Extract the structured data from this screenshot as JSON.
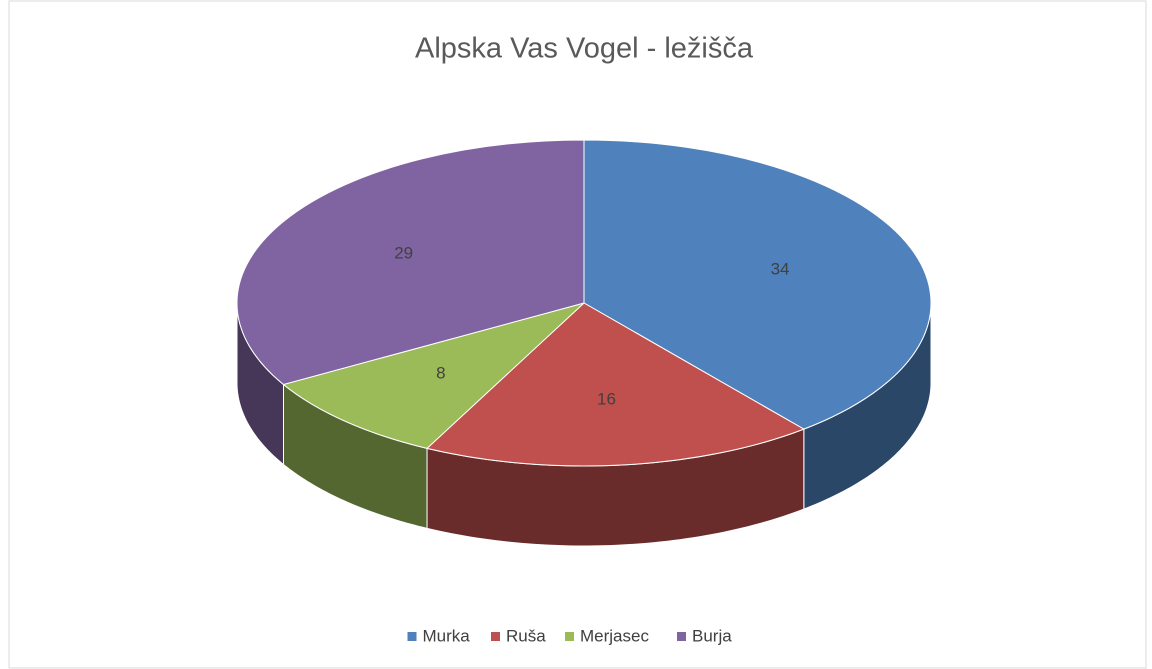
{
  "chart_data": {
    "type": "pie",
    "title": "Alpska Vas Vogel - ležišča",
    "categories": [
      "Murka",
      "Ruša",
      "Merjasec",
      "Burja"
    ],
    "values": [
      34,
      16,
      8,
      29
    ],
    "colors": [
      "#4f81bd",
      "#c0504d",
      "#9bbb59",
      "#8064a2"
    ],
    "legend": "bottom"
  }
}
